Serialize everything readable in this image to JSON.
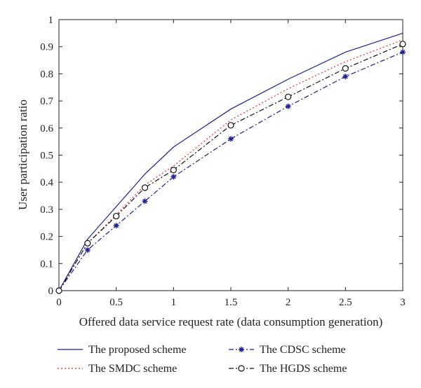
{
  "chart_data": {
    "type": "line",
    "title": "",
    "xlabel": "Offered data service request rate (data consumption generation)",
    "ylabel": "User participation ratio",
    "xlim": [
      0,
      3
    ],
    "ylim": [
      0,
      1
    ],
    "xticks": [
      "0",
      "0.5",
      "1",
      "1.5",
      "2",
      "2.5",
      "3"
    ],
    "yticks": [
      "0",
      "0.1",
      "0.2",
      "0.3",
      "0.4",
      "0.5",
      "0.6",
      "0.7",
      "0.8",
      "0.9",
      "1"
    ],
    "grid": false,
    "legend_position": "bottom",
    "series": [
      {
        "name": "The proposed scheme",
        "color": "#1f1f8f",
        "style": "solid",
        "marker": "none",
        "x": [
          0,
          0.25,
          0.5,
          0.75,
          1,
          1.5,
          2,
          2.5,
          3
        ],
        "y": [
          0,
          0.19,
          0.31,
          0.43,
          0.53,
          0.67,
          0.78,
          0.88,
          0.95
        ]
      },
      {
        "name": "The SMDC scheme",
        "color": "#e0302a",
        "style": "dotted",
        "marker": "none",
        "x": [
          0,
          0.25,
          0.5,
          0.75,
          1,
          1.5,
          2,
          2.5,
          3
        ],
        "y": [
          0,
          0.175,
          0.28,
          0.39,
          0.46,
          0.63,
          0.745,
          0.845,
          0.925
        ]
      },
      {
        "name": "The CDSC scheme",
        "color": "#1f1f8f",
        "style": "dashdot",
        "marker": "star",
        "x": [
          0,
          0.25,
          0.5,
          0.75,
          1,
          1.5,
          2,
          2.5,
          3
        ],
        "y": [
          0,
          0.15,
          0.24,
          0.33,
          0.42,
          0.56,
          0.68,
          0.79,
          0.88
        ]
      },
      {
        "name": "The HGDS scheme",
        "color": "#111111",
        "style": "dashdot",
        "marker": "circle",
        "x": [
          0,
          0.25,
          0.5,
          0.75,
          1,
          1.5,
          2,
          2.5,
          3
        ],
        "y": [
          0,
          0.175,
          0.275,
          0.38,
          0.445,
          0.61,
          0.715,
          0.82,
          0.91
        ]
      }
    ]
  }
}
